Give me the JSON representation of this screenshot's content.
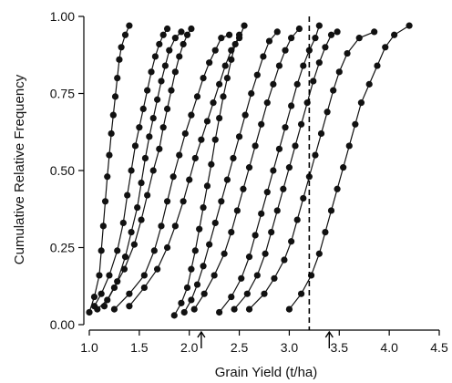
{
  "chart_data": {
    "type": "line",
    "xlabel": "Grain Yield (t/ha)",
    "ylabel": "Cumulative Relative Frequency",
    "xlim": [
      1.0,
      4.5
    ],
    "ylim": [
      0.0,
      1.0
    ],
    "x_ticks": [
      1.0,
      1.5,
      2.0,
      2.5,
      3.0,
      3.5,
      4.0,
      4.5
    ],
    "x_tick_labels": [
      "1.0",
      "1.5",
      "2.0",
      "2.5",
      "3.0",
      "3.5",
      "4.0",
      "4.5"
    ],
    "y_ticks": [
      0.0,
      0.25,
      0.5,
      0.75,
      1.0
    ],
    "y_tick_labels": [
      "0.00",
      "0.25",
      "0.50",
      "0.75",
      "1.00"
    ],
    "reference_line": {
      "style": "dashed",
      "orientation": "vertical",
      "x": 3.2
    },
    "arrow_markers": [
      {
        "x": 2.12,
        "direction": "up"
      },
      {
        "x": 3.4,
        "direction": "up"
      }
    ],
    "series": [
      {
        "x": [
          1.0,
          1.05,
          1.1,
          1.12,
          1.14,
          1.16,
          1.18,
          1.2,
          1.22,
          1.24,
          1.26,
          1.28,
          1.3,
          1.32,
          1.36,
          1.4
        ],
        "y": [
          0.04,
          0.09,
          0.16,
          0.24,
          0.32,
          0.4,
          0.48,
          0.55,
          0.62,
          0.68,
          0.74,
          0.8,
          0.86,
          0.9,
          0.94,
          0.97
        ]
      },
      {
        "x": [
          1.05,
          1.12,
          1.2,
          1.28,
          1.34,
          1.38,
          1.42,
          1.46,
          1.5,
          1.54,
          1.58,
          1.62,
          1.66,
          1.7,
          1.74,
          1.78
        ],
        "y": [
          0.06,
          0.1,
          0.16,
          0.24,
          0.33,
          0.42,
          0.5,
          0.58,
          0.64,
          0.7,
          0.76,
          0.82,
          0.87,
          0.91,
          0.94,
          0.96
        ]
      },
      {
        "x": [
          1.08,
          1.18,
          1.28,
          1.36,
          1.42,
          1.48,
          1.52,
          1.56,
          1.6,
          1.64,
          1.68,
          1.72,
          1.76,
          1.8,
          1.86,
          1.92
        ],
        "y": [
          0.05,
          0.08,
          0.14,
          0.22,
          0.3,
          0.38,
          0.46,
          0.54,
          0.61,
          0.67,
          0.73,
          0.79,
          0.84,
          0.89,
          0.93,
          0.95
        ]
      },
      {
        "x": [
          1.15,
          1.25,
          1.35,
          1.45,
          1.52,
          1.58,
          1.64,
          1.7,
          1.74,
          1.78,
          1.82,
          1.86,
          1.9,
          1.94,
          1.98,
          2.02
        ],
        "y": [
          0.06,
          0.12,
          0.18,
          0.26,
          0.34,
          0.42,
          0.5,
          0.57,
          0.64,
          0.7,
          0.76,
          0.82,
          0.87,
          0.91,
          0.94,
          0.96
        ]
      },
      {
        "x": [
          1.25,
          1.4,
          1.55,
          1.65,
          1.72,
          1.78,
          1.84,
          1.9,
          1.96,
          2.02,
          2.08,
          2.14,
          2.2,
          2.26,
          2.32,
          2.4
        ],
        "y": [
          0.05,
          0.1,
          0.16,
          0.24,
          0.32,
          0.4,
          0.48,
          0.55,
          0.62,
          0.68,
          0.74,
          0.8,
          0.85,
          0.89,
          0.93,
          0.94
        ]
      },
      {
        "x": [
          1.4,
          1.55,
          1.68,
          1.78,
          1.86,
          1.94,
          2.0,
          2.06,
          2.12,
          2.18,
          2.24,
          2.3,
          2.36,
          2.42,
          2.5,
          2.55
        ],
        "y": [
          0.06,
          0.12,
          0.18,
          0.25,
          0.32,
          0.4,
          0.47,
          0.54,
          0.6,
          0.66,
          0.72,
          0.78,
          0.84,
          0.89,
          0.93,
          0.97
        ]
      },
      {
        "x": [
          1.85,
          1.92,
          1.98,
          2.02,
          2.06,
          2.1,
          2.14,
          2.18,
          2.22,
          2.26,
          2.3,
          2.34,
          2.38,
          2.42,
          2.46,
          2.5
        ],
        "y": [
          0.03,
          0.07,
          0.12,
          0.18,
          0.24,
          0.31,
          0.38,
          0.45,
          0.52,
          0.6,
          0.67,
          0.74,
          0.8,
          0.86,
          0.91,
          0.94
        ]
      },
      {
        "x": [
          1.95,
          2.02,
          2.08,
          2.14,
          2.2,
          2.26,
          2.32,
          2.38,
          2.44,
          2.5,
          2.56,
          2.62,
          2.68,
          2.74,
          2.8,
          2.88
        ],
        "y": [
          0.04,
          0.08,
          0.13,
          0.19,
          0.26,
          0.33,
          0.4,
          0.47,
          0.54,
          0.61,
          0.68,
          0.75,
          0.81,
          0.87,
          0.92,
          0.95
        ]
      },
      {
        "x": [
          2.05,
          2.15,
          2.25,
          2.35,
          2.42,
          2.48,
          2.54,
          2.6,
          2.66,
          2.72,
          2.78,
          2.84,
          2.9,
          2.96,
          3.02,
          3.1
        ],
        "y": [
          0.05,
          0.1,
          0.16,
          0.23,
          0.3,
          0.37,
          0.44,
          0.51,
          0.58,
          0.65,
          0.72,
          0.78,
          0.84,
          0.89,
          0.93,
          0.96
        ]
      },
      {
        "x": [
          2.3,
          2.42,
          2.52,
          2.6,
          2.66,
          2.72,
          2.78,
          2.84,
          2.9,
          2.96,
          3.02,
          3.08,
          3.14,
          3.2,
          3.26,
          3.3
        ],
        "y": [
          0.04,
          0.09,
          0.15,
          0.22,
          0.29,
          0.36,
          0.43,
          0.5,
          0.57,
          0.64,
          0.71,
          0.78,
          0.84,
          0.89,
          0.93,
          0.97
        ]
      },
      {
        "x": [
          2.45,
          2.58,
          2.68,
          2.76,
          2.82,
          2.88,
          2.94,
          3.0,
          3.06,
          3.12,
          3.18,
          3.24,
          3.3,
          3.36,
          3.42,
          3.48
        ],
        "y": [
          0.05,
          0.1,
          0.16,
          0.23,
          0.3,
          0.37,
          0.44,
          0.51,
          0.58,
          0.65,
          0.72,
          0.79,
          0.85,
          0.9,
          0.94,
          0.95
        ]
      },
      {
        "x": [
          2.6,
          2.75,
          2.85,
          2.95,
          3.02,
          3.08,
          3.14,
          3.2,
          3.26,
          3.32,
          3.38,
          3.44,
          3.5,
          3.58,
          3.7,
          3.85
        ],
        "y": [
          0.05,
          0.1,
          0.15,
          0.21,
          0.27,
          0.34,
          0.41,
          0.48,
          0.55,
          0.62,
          0.69,
          0.76,
          0.82,
          0.88,
          0.93,
          0.95
        ]
      },
      {
        "x": [
          3.0,
          3.12,
          3.22,
          3.3,
          3.36,
          3.42,
          3.48,
          3.54,
          3.6,
          3.66,
          3.72,
          3.8,
          3.88,
          3.96,
          4.05,
          4.2
        ],
        "y": [
          0.05,
          0.1,
          0.16,
          0.23,
          0.3,
          0.37,
          0.44,
          0.51,
          0.58,
          0.65,
          0.72,
          0.78,
          0.84,
          0.9,
          0.94,
          0.97
        ]
      }
    ]
  }
}
